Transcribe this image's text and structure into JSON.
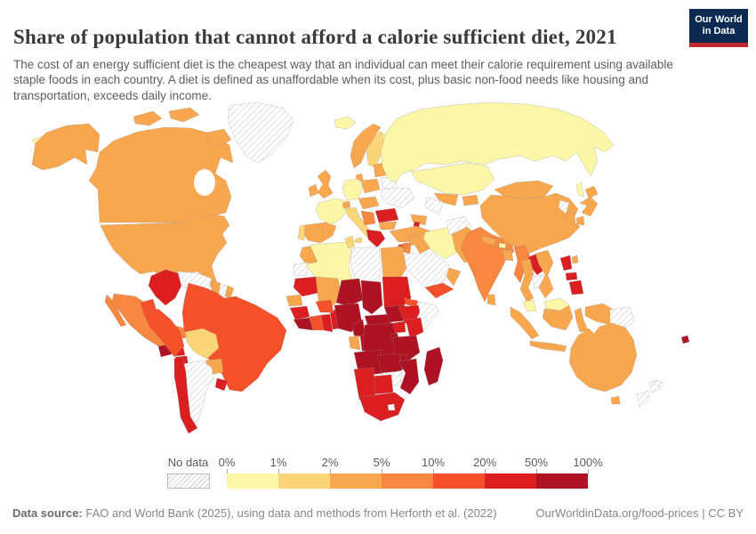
{
  "header": {
    "title": "Share of population that cannot afford a calorie sufficient diet, 2021",
    "subtitle": "The cost of an energy sufficient diet is the cheapest way that an individual can meet their calorie requirement using available staple foods in each country. A diet is defined as unaffordable when its cost, plus basic non-food needs like housing and transportation, exceeds daily income.",
    "logo": {
      "line1": "Our World",
      "line2": "in Data",
      "bg_color": "#0B2A51",
      "accent_color": "#C0272D"
    }
  },
  "legend": {
    "no_data_label": "No data",
    "ticks": [
      "0%",
      "1%",
      "2%",
      "5%",
      "10%",
      "20%",
      "50%",
      "100%"
    ]
  },
  "footer": {
    "source_label": "Data source:",
    "source_text": " FAO and World Bank (2025), using data and methods from Herforth et al. (2022)",
    "right_text": "OurWorldinData.org/food-prices | CC BY"
  },
  "chart_data": {
    "type": "choropleth",
    "title": "Share of population that cannot afford a calorie sufficient diet",
    "year": 2021,
    "unit": "% of population",
    "buckets": [
      "0-1%",
      "1-2%",
      "2-5%",
      "5-10%",
      "10-20%",
      "20-50%",
      "50-100%"
    ],
    "bucket_colors": [
      "#FBF7A6",
      "#FBD577",
      "#F9A74F",
      "#F8873F",
      "#F4502A",
      "#DB1F21",
      "#AE1323"
    ],
    "no_data_color": "hatch",
    "regions": {
      "chukotka": {
        "name": "Russia (Chukotka)",
        "bucket": 0
      },
      "alaska": {
        "name": "United States (Alaska)",
        "bucket": 2
      },
      "canada": {
        "name": "Canada",
        "bucket": 2
      },
      "arctic-islands": {
        "name": "Canada (Arctic Islands)",
        "bucket": 2
      },
      "greenland": {
        "name": "Greenland",
        "bucket": -1
      },
      "usa": {
        "name": "United States",
        "bucket": 2
      },
      "mexico": {
        "name": "Mexico",
        "bucket": 3
      },
      "guatemala": {
        "name": "Guatemala",
        "bucket": 6
      },
      "honduras": {
        "name": "Honduras",
        "bucket": 5
      },
      "nicaragua": {
        "name": "Nicaragua",
        "bucket": 5
      },
      "costa-rica": {
        "name": "Costa Rica",
        "bucket": 2
      },
      "panama": {
        "name": "Panama",
        "bucket": 5
      },
      "cuba": {
        "name": "Cuba",
        "bucket": -1
      },
      "haiti": {
        "name": "Haiti",
        "bucket": 6
      },
      "dominican-republic": {
        "name": "Dominican Republic",
        "bucket": 5
      },
      "colombia": {
        "name": "Colombia",
        "bucket": 5
      },
      "venezuela": {
        "name": "Venezuela",
        "bucket": -1
      },
      "guyana": {
        "name": "Guyana",
        "bucket": 2
      },
      "suriname": {
        "name": "Suriname",
        "bucket": -1
      },
      "french-guiana": {
        "name": "French Guiana",
        "bucket": 2
      },
      "ecuador": {
        "name": "Ecuador",
        "bucket": 4
      },
      "peru": {
        "name": "Peru",
        "bucket": 4
      },
      "brazil": {
        "name": "Brazil",
        "bucket": 4
      },
      "bolivia": {
        "name": "Bolivia",
        "bucket": 1
      },
      "paraguay": {
        "name": "Paraguay",
        "bucket": 2
      },
      "chile": {
        "name": "Chile",
        "bucket": 5
      },
      "argentina": {
        "name": "Argentina",
        "bucket": -1
      },
      "uruguay": {
        "name": "Uruguay",
        "bucket": 5
      },
      "iceland": {
        "name": "Iceland",
        "bucket": 0
      },
      "norway": {
        "name": "Norway",
        "bucket": 2
      },
      "sweden": {
        "name": "Sweden",
        "bucket": 1
      },
      "finland": {
        "name": "Finland",
        "bucket": 0
      },
      "denmark": {
        "name": "Denmark",
        "bucket": 2
      },
      "uk": {
        "name": "United Kingdom",
        "bucket": 2
      },
      "ireland": {
        "name": "Ireland",
        "bucket": 2
      },
      "france": {
        "name": "France",
        "bucket": 0
      },
      "spain": {
        "name": "Spain",
        "bucket": 2
      },
      "portugal": {
        "name": "Portugal",
        "bucket": 1
      },
      "germany": {
        "name": "Germany",
        "bucket": 0
      },
      "switzerland": {
        "name": "Switzerland",
        "bucket": 2
      },
      "italy": {
        "name": "Italy",
        "bucket": 1
      },
      "poland": {
        "name": "Poland",
        "bucket": 2
      },
      "baltics": {
        "name": "Baltic States",
        "bucket": 2
      },
      "belarus": {
        "name": "Belarus",
        "bucket": -1
      },
      "ukraine": {
        "name": "Ukraine",
        "bucket": -1
      },
      "central-europe": {
        "name": "Czechia-Austria-Hungary",
        "bucket": 2
      },
      "balkans": {
        "name": "Western Balkans",
        "bucket": 3
      },
      "romania": {
        "name": "Romania",
        "bucket": 5
      },
      "bulgaria": {
        "name": "Bulgaria",
        "bucket": 2
      },
      "greece": {
        "name": "Greece",
        "bucket": 5
      },
      "russia": {
        "name": "Russia",
        "bucket": 0
      },
      "kazakhstan": {
        "name": "Kazakhstan",
        "bucket": 0
      },
      "uzbekistan": {
        "name": "Uzbekistan",
        "bucket": 2
      },
      "turkmenistan": {
        "name": "Turkmenistan",
        "bucket": -1
      },
      "kyrgyzstan-tajikistan": {
        "name": "Kyrgyzstan-Tajikistan",
        "bucket": 2
      },
      "georgia-azerbaijan": {
        "name": "Georgia-Azerbaijan",
        "bucket": 2
      },
      "armenia": {
        "name": "Armenia",
        "bucket": 5
      },
      "turkey": {
        "name": "Turkey",
        "bucket": 2
      },
      "syria": {
        "name": "Syria",
        "bucket": 2
      },
      "iraq": {
        "name": "Iraq",
        "bucket": 2
      },
      "iran": {
        "name": "Iran",
        "bucket": 0
      },
      "levant": {
        "name": "Israel-Jordan",
        "bucket": 3
      },
      "cyprus": {
        "name": "Cyprus",
        "bucket": 4
      },
      "saudi-arabia": {
        "name": "Saudi Arabia",
        "bucket": -1
      },
      "yemen": {
        "name": "Yemen",
        "bucket": 4
      },
      "oman": {
        "name": "Oman",
        "bucket": 2
      },
      "afghanistan": {
        "name": "Afghanistan",
        "bucket": -1
      },
      "pakistan": {
        "name": "Pakistan",
        "bucket": 2
      },
      "india": {
        "name": "India",
        "bucket": 3
      },
      "nepal": {
        "name": "Nepal",
        "bucket": 2
      },
      "bhutan": {
        "name": "Bhutan",
        "bucket": 0
      },
      "bangladesh": {
        "name": "Bangladesh",
        "bucket": 2
      },
      "sri-lanka": {
        "name": "Sri Lanka",
        "bucket": 2
      },
      "myanmar": {
        "name": "Myanmar",
        "bucket": 3
      },
      "laos": {
        "name": "Laos",
        "bucket": 5
      },
      "thailand": {
        "name": "Thailand",
        "bucket": 2
      },
      "cambodia": {
        "name": "Cambodia",
        "bucket": -1
      },
      "vietnam": {
        "name": "Vietnam",
        "bucket": 2
      },
      "malaysia-peninsula": {
        "name": "Malaysia (Peninsula)",
        "bucket": 0
      },
      "sumatra": {
        "name": "Indonesia (Sumatra)",
        "bucket": 2
      },
      "java": {
        "name": "Indonesia (Java)",
        "bucket": 2
      },
      "borneo-malaysia": {
        "name": "Malaysia (Borneo)",
        "bucket": 0
      },
      "borneo-indonesia": {
        "name": "Indonesia (Kalimantan)",
        "bucket": 2
      },
      "sulawesi": {
        "name": "Indonesia (Sulawesi)",
        "bucket": 2
      },
      "philippines": {
        "name": "Philippines",
        "bucket": 5
      },
      "new-guinea-indonesia": {
        "name": "Indonesia (Papua)",
        "bucket": 2
      },
      "papua-new-guinea": {
        "name": "Papua New Guinea",
        "bucket": -1
      },
      "china": {
        "name": "China",
        "bucket": 2
      },
      "mongolia": {
        "name": "Mongolia",
        "bucket": 2
      },
      "north-korea": {
        "name": "North Korea",
        "bucket": -1
      },
      "south-korea": {
        "name": "South Korea",
        "bucket": 2
      },
      "japan": {
        "name": "Japan",
        "bucket": 2
      },
      "taiwan": {
        "name": "Taiwan",
        "bucket": 2
      },
      "australia": {
        "name": "Australia",
        "bucket": 2
      },
      "tasmania": {
        "name": "Australia (Tasmania)",
        "bucket": 2
      },
      "new-zealand": {
        "name": "New Zealand",
        "bucket": -1
      },
      "new-caledonia": {
        "name": "New Caledonia",
        "bucket": -1
      },
      "fiji": {
        "name": "Fiji",
        "bucket": 6
      },
      "morocco": {
        "name": "Morocco",
        "bucket": 2
      },
      "western-sahara": {
        "name": "Western Sahara",
        "bucket": -1
      },
      "algeria": {
        "name": "Algeria",
        "bucket": 0
      },
      "tunisia": {
        "name": "Tunisia",
        "bucket": 1
      },
      "libya": {
        "name": "Libya",
        "bucket": -1
      },
      "egypt": {
        "name": "Egypt",
        "bucket": 2
      },
      "mauritania": {
        "name": "Mauritania",
        "bucket": 5
      },
      "mali": {
        "name": "Mali",
        "bucket": 2
      },
      "senegal": {
        "name": "Senegal",
        "bucket": 2
      },
      "guinea": {
        "name": "Guinea",
        "bucket": 5
      },
      "sierra-leone-liberia": {
        "name": "Sierra Leone-Liberia",
        "bucket": 6
      },
      "ivory-coast": {
        "name": "Cote d'Ivoire",
        "bucket": 4
      },
      "ghana": {
        "name": "Ghana",
        "bucket": 5
      },
      "togo-benin": {
        "name": "Togo-Benin",
        "bucket": 5
      },
      "burkina-faso": {
        "name": "Burkina Faso",
        "bucket": 4
      },
      "niger": {
        "name": "Niger",
        "bucket": 6
      },
      "nigeria": {
        "name": "Nigeria",
        "bucket": 6
      },
      "chad": {
        "name": "Chad",
        "bucket": 6
      },
      "sudan": {
        "name": "Sudan",
        "bucket": 5
      },
      "south-sudan": {
        "name": "South Sudan",
        "bucket": 6
      },
      "eritrea": {
        "name": "Eritrea",
        "bucket": 4
      },
      "ethiopia": {
        "name": "Ethiopia",
        "bucket": 5
      },
      "somalia": {
        "name": "Somalia",
        "bucket": -1
      },
      "cameroon": {
        "name": "Cameroon",
        "bucket": 6
      },
      "central-african-republic": {
        "name": "Central African Republic",
        "bucket": 6
      },
      "gabon": {
        "name": "Gabon",
        "bucket": 2
      },
      "congo": {
        "name": "Congo",
        "bucket": 6
      },
      "drc": {
        "name": "Democratic Republic of Congo",
        "bucket": 6
      },
      "uganda": {
        "name": "Uganda",
        "bucket": 5
      },
      "kenya": {
        "name": "Kenya",
        "bucket": 5
      },
      "rwanda-burundi": {
        "name": "Rwanda-Burundi",
        "bucket": 6
      },
      "tanzania": {
        "name": "Tanzania",
        "bucket": 6
      },
      "angola": {
        "name": "Angola",
        "bucket": 6
      },
      "zambia": {
        "name": "Zambia",
        "bucket": 6
      },
      "malawi": {
        "name": "Malawi",
        "bucket": 6
      },
      "mozambique": {
        "name": "Mozambique",
        "bucket": 6
      },
      "zimbabwe": {
        "name": "Zimbabwe",
        "bucket": -1
      },
      "botswana": {
        "name": "Botswana",
        "bucket": 5
      },
      "namibia": {
        "name": "Namibia",
        "bucket": 5
      },
      "south-africa": {
        "name": "South Africa",
        "bucket": 5
      },
      "lesotho": {
        "name": "Lesotho",
        "bucket": -1
      },
      "madagascar": {
        "name": "Madagascar",
        "bucket": 6
      }
    }
  }
}
